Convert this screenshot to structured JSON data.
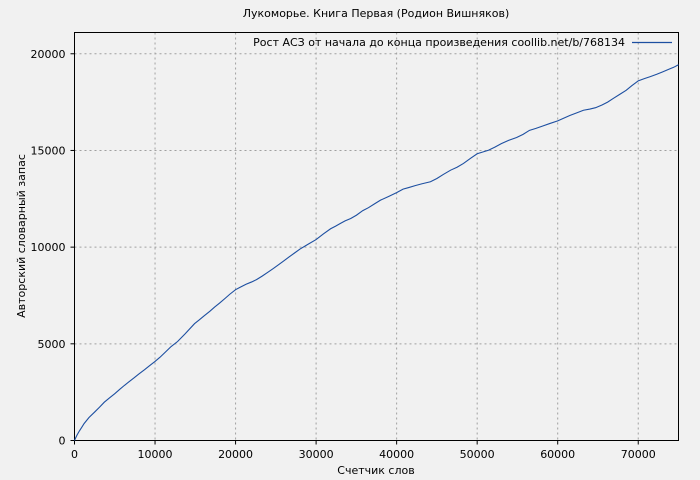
{
  "chart_data": {
    "type": "line",
    "title": "Лукоморье. Книга Первая (Родион Вишняков)",
    "xlabel": "Счетчик слов",
    "ylabel": "Авторский словарный запас",
    "legend": [
      {
        "label": "Рост АСЗ от начала до конца произведения coollib.net/b/768134",
        "color": "#1d4fa1"
      }
    ],
    "legend_position": "top-right-inside",
    "grid": "dotted",
    "grid_color": "#a0a0a0",
    "frame_color": "#000000",
    "background_color": "#f1f1f1",
    "x_ticks": [
      0,
      10000,
      20000,
      30000,
      40000,
      50000,
      60000,
      70000
    ],
    "y_ticks": [
      0,
      5000,
      10000,
      15000,
      20000
    ],
    "xlim": [
      0,
      75000
    ],
    "ylim": [
      0,
      21100
    ],
    "series": [
      {
        "name": "Рост АСЗ от начала до конца произведения coollib.net/b/768134",
        "color": "#1d4fa1",
        "points": [
          [
            0,
            0
          ],
          [
            100,
            95
          ],
          [
            300,
            270
          ],
          [
            600,
            490
          ],
          [
            900,
            680
          ],
          [
            1200,
            880
          ],
          [
            1800,
            1190
          ],
          [
            2500,
            1470
          ],
          [
            3100,
            1720
          ],
          [
            3700,
            1980
          ],
          [
            4300,
            2190
          ],
          [
            5000,
            2420
          ],
          [
            5600,
            2640
          ],
          [
            6200,
            2850
          ],
          [
            6800,
            3050
          ],
          [
            7400,
            3240
          ],
          [
            8000,
            3440
          ],
          [
            8700,
            3660
          ],
          [
            9300,
            3860
          ],
          [
            10000,
            4090
          ],
          [
            10600,
            4300
          ],
          [
            11200,
            4540
          ],
          [
            12000,
            4860
          ],
          [
            12800,
            5120
          ],
          [
            13700,
            5500
          ],
          [
            14900,
            6040
          ],
          [
            15500,
            6240
          ],
          [
            16100,
            6450
          ],
          [
            16800,
            6680
          ],
          [
            17400,
            6900
          ],
          [
            18000,
            7100
          ],
          [
            18700,
            7350
          ],
          [
            19300,
            7570
          ],
          [
            20000,
            7800
          ],
          [
            20600,
            7930
          ],
          [
            21300,
            8080
          ],
          [
            22000,
            8200
          ],
          [
            22600,
            8320
          ],
          [
            23300,
            8500
          ],
          [
            24000,
            8700
          ],
          [
            24700,
            8900
          ],
          [
            25300,
            9080
          ],
          [
            26000,
            9290
          ],
          [
            26600,
            9480
          ],
          [
            27300,
            9690
          ],
          [
            28000,
            9900
          ],
          [
            29000,
            10150
          ],
          [
            30000,
            10390
          ],
          [
            30900,
            10680
          ],
          [
            31800,
            10950
          ],
          [
            32400,
            11080
          ],
          [
            33000,
            11220
          ],
          [
            33600,
            11360
          ],
          [
            34300,
            11480
          ],
          [
            35000,
            11650
          ],
          [
            35800,
            11890
          ],
          [
            36500,
            12040
          ],
          [
            37300,
            12250
          ],
          [
            38000,
            12430
          ],
          [
            39000,
            12620
          ],
          [
            40000,
            12820
          ],
          [
            40800,
            13000
          ],
          [
            41500,
            13080
          ],
          [
            42300,
            13180
          ],
          [
            43100,
            13270
          ],
          [
            44200,
            13380
          ],
          [
            45000,
            13550
          ],
          [
            45800,
            13760
          ],
          [
            46700,
            13980
          ],
          [
            47500,
            14130
          ],
          [
            48300,
            14330
          ],
          [
            49200,
            14600
          ],
          [
            50000,
            14830
          ],
          [
            50700,
            14920
          ],
          [
            51400,
            15010
          ],
          [
            52200,
            15170
          ],
          [
            53000,
            15350
          ],
          [
            53900,
            15520
          ],
          [
            54900,
            15670
          ],
          [
            55700,
            15830
          ],
          [
            56500,
            16040
          ],
          [
            57300,
            16140
          ],
          [
            58100,
            16260
          ],
          [
            59000,
            16390
          ],
          [
            60000,
            16530
          ],
          [
            60800,
            16680
          ],
          [
            61500,
            16810
          ],
          [
            62400,
            16950
          ],
          [
            63200,
            17080
          ],
          [
            64000,
            17140
          ],
          [
            64700,
            17210
          ],
          [
            65500,
            17350
          ],
          [
            66200,
            17500
          ],
          [
            66900,
            17690
          ],
          [
            67700,
            17900
          ],
          [
            68500,
            18110
          ],
          [
            69200,
            18350
          ],
          [
            70000,
            18600
          ],
          [
            70800,
            18720
          ],
          [
            71500,
            18820
          ],
          [
            72300,
            18940
          ],
          [
            73000,
            19060
          ],
          [
            73800,
            19200
          ],
          [
            74400,
            19300
          ],
          [
            75000,
            19430
          ]
        ]
      }
    ]
  }
}
